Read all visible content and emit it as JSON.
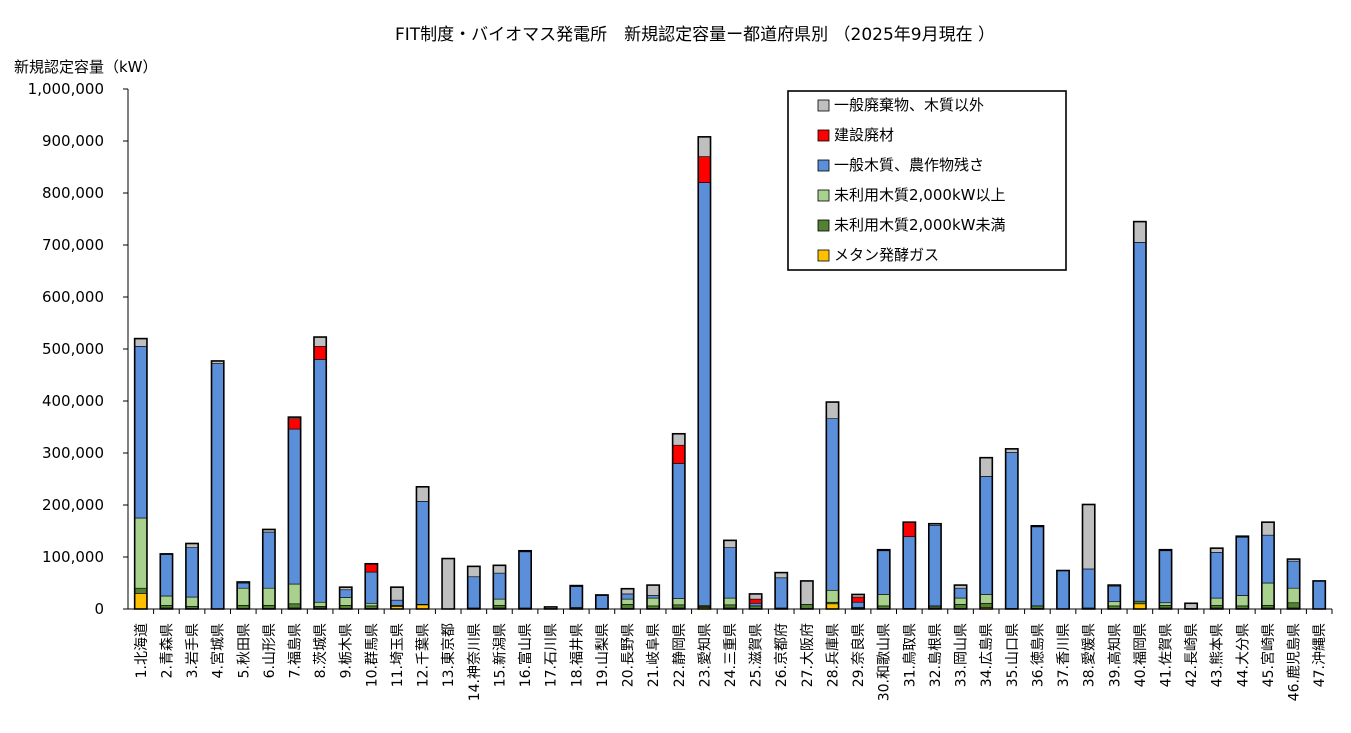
{
  "chart_data": {
    "type": "bar",
    "stacked": true,
    "title": "FIT制度・バイオマス発電所　新規認定容量ー都道府県別 （2025年9月現在 ）",
    "ylabel": "新規認定容量（kW）",
    "xlabel": "",
    "ylim": [
      0,
      1000000
    ],
    "yticks": [
      0,
      100000,
      200000,
      300000,
      400000,
      500000,
      600000,
      700000,
      800000,
      900000,
      1000000
    ],
    "ytick_labels": [
      "0",
      "100,000",
      "200,000",
      "300,000",
      "400,000",
      "500,000",
      "600,000",
      "700,000",
      "800,000",
      "900,000",
      "1,000,000"
    ],
    "grid": false,
    "legend_position": "top-right",
    "categories": [
      "1.北海道",
      "2.青森県",
      "3.岩手県",
      "4.宮城県",
      "5.秋田県",
      "6.山形県",
      "7.福島県",
      "8.茨城県",
      "9.栃木県",
      "10.群馬県",
      "11.埼玉県",
      "12.千葉県",
      "13.東京都",
      "14.神奈川県",
      "15.新潟県",
      "16.富山県",
      "17.石川県",
      "18.福井県",
      "19.山梨県",
      "20.長野県",
      "21.岐阜県",
      "22.静岡県",
      "23.愛知県",
      "24.三重県",
      "25.滋賀県",
      "26.京都府",
      "27.大阪府",
      "28.兵庫県",
      "29.奈良県",
      "30.和歌山県",
      "31.鳥取県",
      "32.島根県",
      "33.岡山県",
      "34.広島県",
      "35.山口県",
      "36.徳島県",
      "37.香川県",
      "38.愛媛県",
      "39.高知県",
      "40.福岡県",
      "41.佐賀県",
      "42.長崎県",
      "43.熊本県",
      "44.大分県",
      "45.宮崎県",
      "46.鹿児島県",
      "47.沖縄県"
    ],
    "series": [
      {
        "name": "メタン発酵ガス",
        "color": "#FFC000",
        "values": [
          30000,
          2000,
          1000,
          0,
          1000,
          1000,
          2000,
          2000,
          1000,
          1000,
          5000,
          8000,
          0,
          1000,
          2000,
          1000,
          0,
          1000,
          0,
          1000,
          1000,
          2000,
          3000,
          2000,
          1000,
          1000,
          1000,
          10000,
          1000,
          1000,
          1000,
          1000,
          1000,
          3000,
          0,
          1000,
          0,
          0,
          1000,
          10000,
          2000,
          0,
          2000,
          1000,
          2000,
          2000,
          0
        ]
      },
      {
        "name": "未利用木質2,000kW未満",
        "color": "#548235",
        "values": [
          10000,
          5000,
          4000,
          0,
          6000,
          6000,
          8000,
          3000,
          6000,
          5000,
          2000,
          1000,
          0,
          1000,
          5000,
          1000,
          1000,
          2000,
          1000,
          8000,
          5000,
          6000,
          2000,
          6000,
          5000,
          1000,
          8000,
          3000,
          2000,
          5000,
          0,
          3000,
          8000,
          8000,
          1000,
          5000,
          0,
          2000,
          5000,
          5000,
          5000,
          1000,
          5000,
          5000,
          5000,
          10000,
          0
        ]
      },
      {
        "name": "未利用木質2,000kW以上",
        "color": "#A9D18E",
        "values": [
          135000,
          18000,
          18000,
          0,
          33000,
          33000,
          38000,
          8000,
          15000,
          5000,
          0,
          0,
          0,
          0,
          12000,
          0,
          0,
          0,
          0,
          10000,
          15000,
          12000,
          2000,
          13000,
          0,
          0,
          0,
          23000,
          0,
          22000,
          0,
          2000,
          12000,
          17000,
          0,
          0,
          0,
          0,
          8000,
          0,
          5000,
          0,
          14000,
          20000,
          43000,
          28000,
          0
        ]
      },
      {
        "name": "一般木質、農作物残さ",
        "color": "#5B8FD9",
        "values": [
          330000,
          80000,
          95000,
          472000,
          10000,
          108000,
          298000,
          467000,
          15000,
          60000,
          10000,
          198000,
          0,
          60000,
          50000,
          108000,
          0,
          40000,
          25000,
          10000,
          5000,
          260000,
          813000,
          97000,
          5000,
          58000,
          0,
          330000,
          10000,
          84000,
          138000,
          155000,
          19000,
          227000,
          300000,
          152000,
          74000,
          75000,
          30000,
          690000,
          100000,
          0,
          88000,
          112000,
          92000,
          52000,
          54000
        ]
      },
      {
        "name": "建設廃材",
        "color": "#FF0000",
        "values": [
          0,
          0,
          0,
          0,
          0,
          0,
          20000,
          25000,
          0,
          15000,
          0,
          0,
          0,
          0,
          0,
          0,
          0,
          0,
          0,
          0,
          0,
          35000,
          50000,
          0,
          8000,
          0,
          0,
          0,
          10000,
          0,
          28000,
          0,
          0,
          0,
          0,
          0,
          0,
          0,
          0,
          0,
          0,
          0,
          0,
          0,
          0,
          0,
          0
        ]
      },
      {
        "name": "一般廃棄物、木質以外",
        "color": "#BFBFBF",
        "values": [
          15000,
          1000,
          8000,
          5000,
          2000,
          5000,
          3000,
          18000,
          5000,
          1000,
          25000,
          28000,
          97000,
          20000,
          15000,
          2000,
          3000,
          2000,
          1000,
          10000,
          20000,
          22000,
          38000,
          14000,
          10000,
          10000,
          45000,
          32000,
          5000,
          2000,
          0,
          3000,
          6000,
          36000,
          7000,
          2000,
          0,
          124000,
          2000,
          40000,
          2000,
          10000,
          8000,
          2000,
          25000,
          4000,
          0
        ]
      }
    ]
  }
}
